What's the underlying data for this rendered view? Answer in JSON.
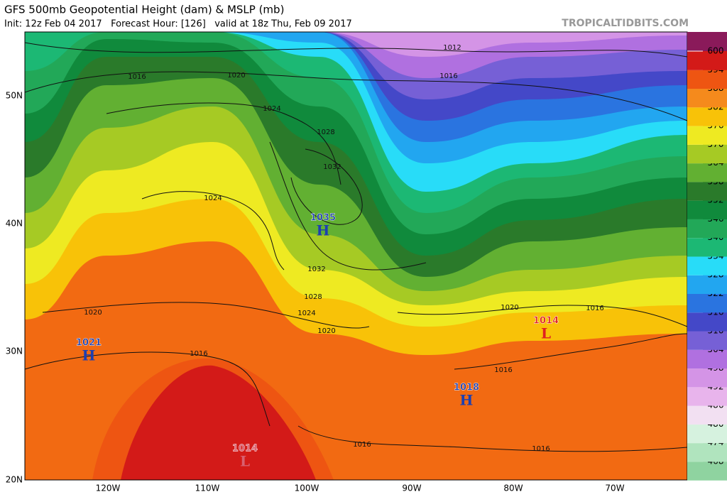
{
  "header": {
    "title": "GFS 500mb Geopotential Height (dam) & MSLP (mb)",
    "subtitle": "Init: 12z Feb 04 2017   Forecast Hour: [126]   valid at 18z Thu, Feb 09 2017",
    "source": "TROPICALTIDBITS.COM"
  },
  "map": {
    "lat_labels": [
      "50N",
      "40N",
      "30N",
      "20N"
    ],
    "lon_labels": [
      "120W",
      "110W",
      "100W",
      "90W",
      "80W",
      "70W"
    ],
    "pressure_centers": [
      {
        "label": "1035",
        "type": "H"
      },
      {
        "label": "1021",
        "type": "H"
      },
      {
        "label": "1018",
        "type": "H"
      },
      {
        "label": "1014",
        "type": "L"
      },
      {
        "label": "1014",
        "type": "L"
      }
    ],
    "isobar_labels": [
      "1012",
      "1016",
      "1016",
      "1020",
      "1024",
      "1028",
      "1032",
      "1024",
      "1032",
      "1028",
      "1024",
      "1020",
      "1020",
      "1016",
      "1020",
      "1016",
      "1016",
      "1016",
      "1016"
    ]
  },
  "colorbar": {
    "levels": [
      468,
      474,
      480,
      486,
      492,
      498,
      504,
      510,
      516,
      522,
      528,
      534,
      540,
      546,
      552,
      558,
      564,
      570,
      576,
      582,
      588,
      594,
      600
    ],
    "colors": [
      "#8fd3a0",
      "#b0e4be",
      "#d6f2df",
      "#f2e0f2",
      "#e8b4ec",
      "#d494e6",
      "#b070e0",
      "#7660d6",
      "#4448c8",
      "#2a74e0",
      "#22a6f0",
      "#28dcf8",
      "#1cb874",
      "#22a858",
      "#108a3c",
      "#2a7a2a",
      "#62b032",
      "#a6ca24",
      "#eeea22",
      "#f8c208",
      "#f58a1c",
      "#ee5512",
      "#d31a18"
    ]
  }
}
